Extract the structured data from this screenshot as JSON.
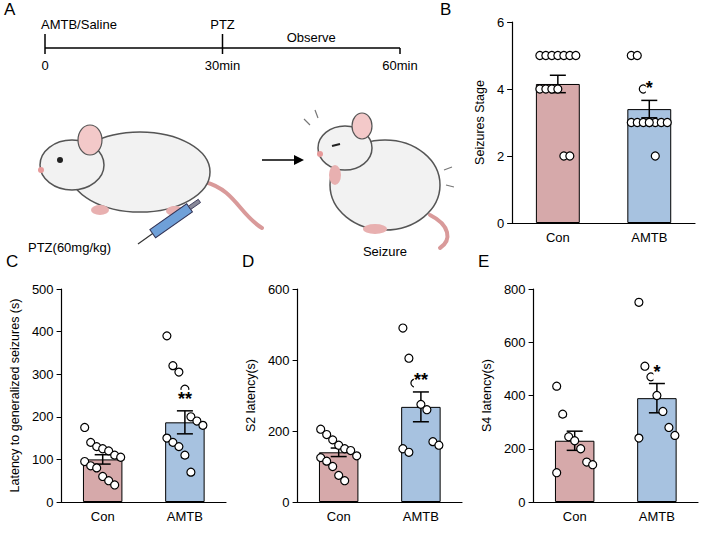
{
  "diagram": {
    "panel": "A",
    "timeline": {
      "ticks": [
        {
          "at": 0,
          "label": "0"
        },
        {
          "at": 30,
          "label": "30min"
        },
        {
          "at": 60,
          "label": "60min"
        }
      ],
      "events": [
        {
          "at": 0,
          "label": "AMTB/Saline"
        },
        {
          "at": 30,
          "label": "PTZ"
        }
      ],
      "span": {
        "from": 30,
        "to": 60,
        "label": "Observe"
      }
    },
    "injection_label": "PTZ(60mg/kg)",
    "outcome_label": "Seizure"
  },
  "chart_data": [
    {
      "panel": "B",
      "type": "bar",
      "y_label": "Seizures Stage",
      "categories": [
        "Con",
        "AMTB"
      ],
      "values": [
        4.15,
        3.4
      ],
      "errors": [
        0.26,
        0.26
      ],
      "points": [
        [
          5,
          5,
          5,
          5,
          5,
          5,
          5,
          4,
          4,
          4,
          4,
          2,
          2
        ],
        [
          5,
          5,
          4,
          3,
          3,
          3,
          3,
          3,
          3,
          3,
          3,
          2
        ]
      ],
      "colors": [
        "#d6a9aa",
        "#a7c2e0"
      ],
      "ylim": [
        0,
        6
      ],
      "yticks": [
        0,
        2,
        4,
        6
      ],
      "grid": false,
      "annotations": [
        {
          "category": "AMTB",
          "text": "*"
        }
      ]
    },
    {
      "panel": "C",
      "type": "bar",
      "y_label": "Latency to generalized seizures (s)",
      "categories": [
        "Con",
        "AMTB"
      ],
      "values": [
        100,
        187
      ],
      "errors": [
        11,
        27
      ],
      "points": [
        [
          175,
          140,
          130,
          125,
          120,
          110,
          105,
          95,
          85,
          80,
          60,
          50,
          40
        ],
        [
          390,
          320,
          305,
          265,
          200,
          190,
          180,
          150,
          140,
          130,
          110,
          70
        ]
      ],
      "colors": [
        "#d6a9aa",
        "#a7c2e0"
      ],
      "ylim": [
        0,
        500
      ],
      "yticks": [
        0,
        100,
        200,
        300,
        400,
        500
      ],
      "grid": false,
      "annotations": [
        {
          "category": "AMTB",
          "text": "**"
        }
      ]
    },
    {
      "panel": "D",
      "type": "bar",
      "y_label": "S2 latency(s)",
      "categories": [
        "Con",
        "AMTB"
      ],
      "values": [
        140,
        268
      ],
      "errors": [
        12,
        42
      ],
      "points": [
        [
          205,
          190,
          175,
          160,
          150,
          145,
          130,
          125,
          115,
          100,
          75,
          60
        ],
        [
          490,
          405,
          335,
          275,
          260,
          170,
          160,
          150,
          140
        ]
      ],
      "colors": [
        "#d6a9aa",
        "#a7c2e0"
      ],
      "ylim": [
        0,
        600
      ],
      "yticks": [
        0,
        200,
        400,
        600
      ],
      "grid": false,
      "annotations": [
        {
          "category": "AMTB",
          "text": "**"
        }
      ]
    },
    {
      "panel": "E",
      "type": "bar",
      "y_label": "S4 latency(s)",
      "categories": [
        "Con",
        "AMTB"
      ],
      "values": [
        230,
        390
      ],
      "errors": [
        36,
        55
      ],
      "points": [
        [
          435,
          330,
          245,
          230,
          200,
          150,
          140,
          110
        ],
        [
          750,
          510,
          470,
          400,
          340,
          280,
          250,
          240
        ]
      ],
      "colors": [
        "#d6a9aa",
        "#a7c2e0"
      ],
      "ylim": [
        0,
        800
      ],
      "yticks": [
        0,
        200,
        400,
        600,
        800
      ],
      "grid": false,
      "annotations": [
        {
          "category": "AMTB",
          "text": "*"
        }
      ]
    }
  ]
}
